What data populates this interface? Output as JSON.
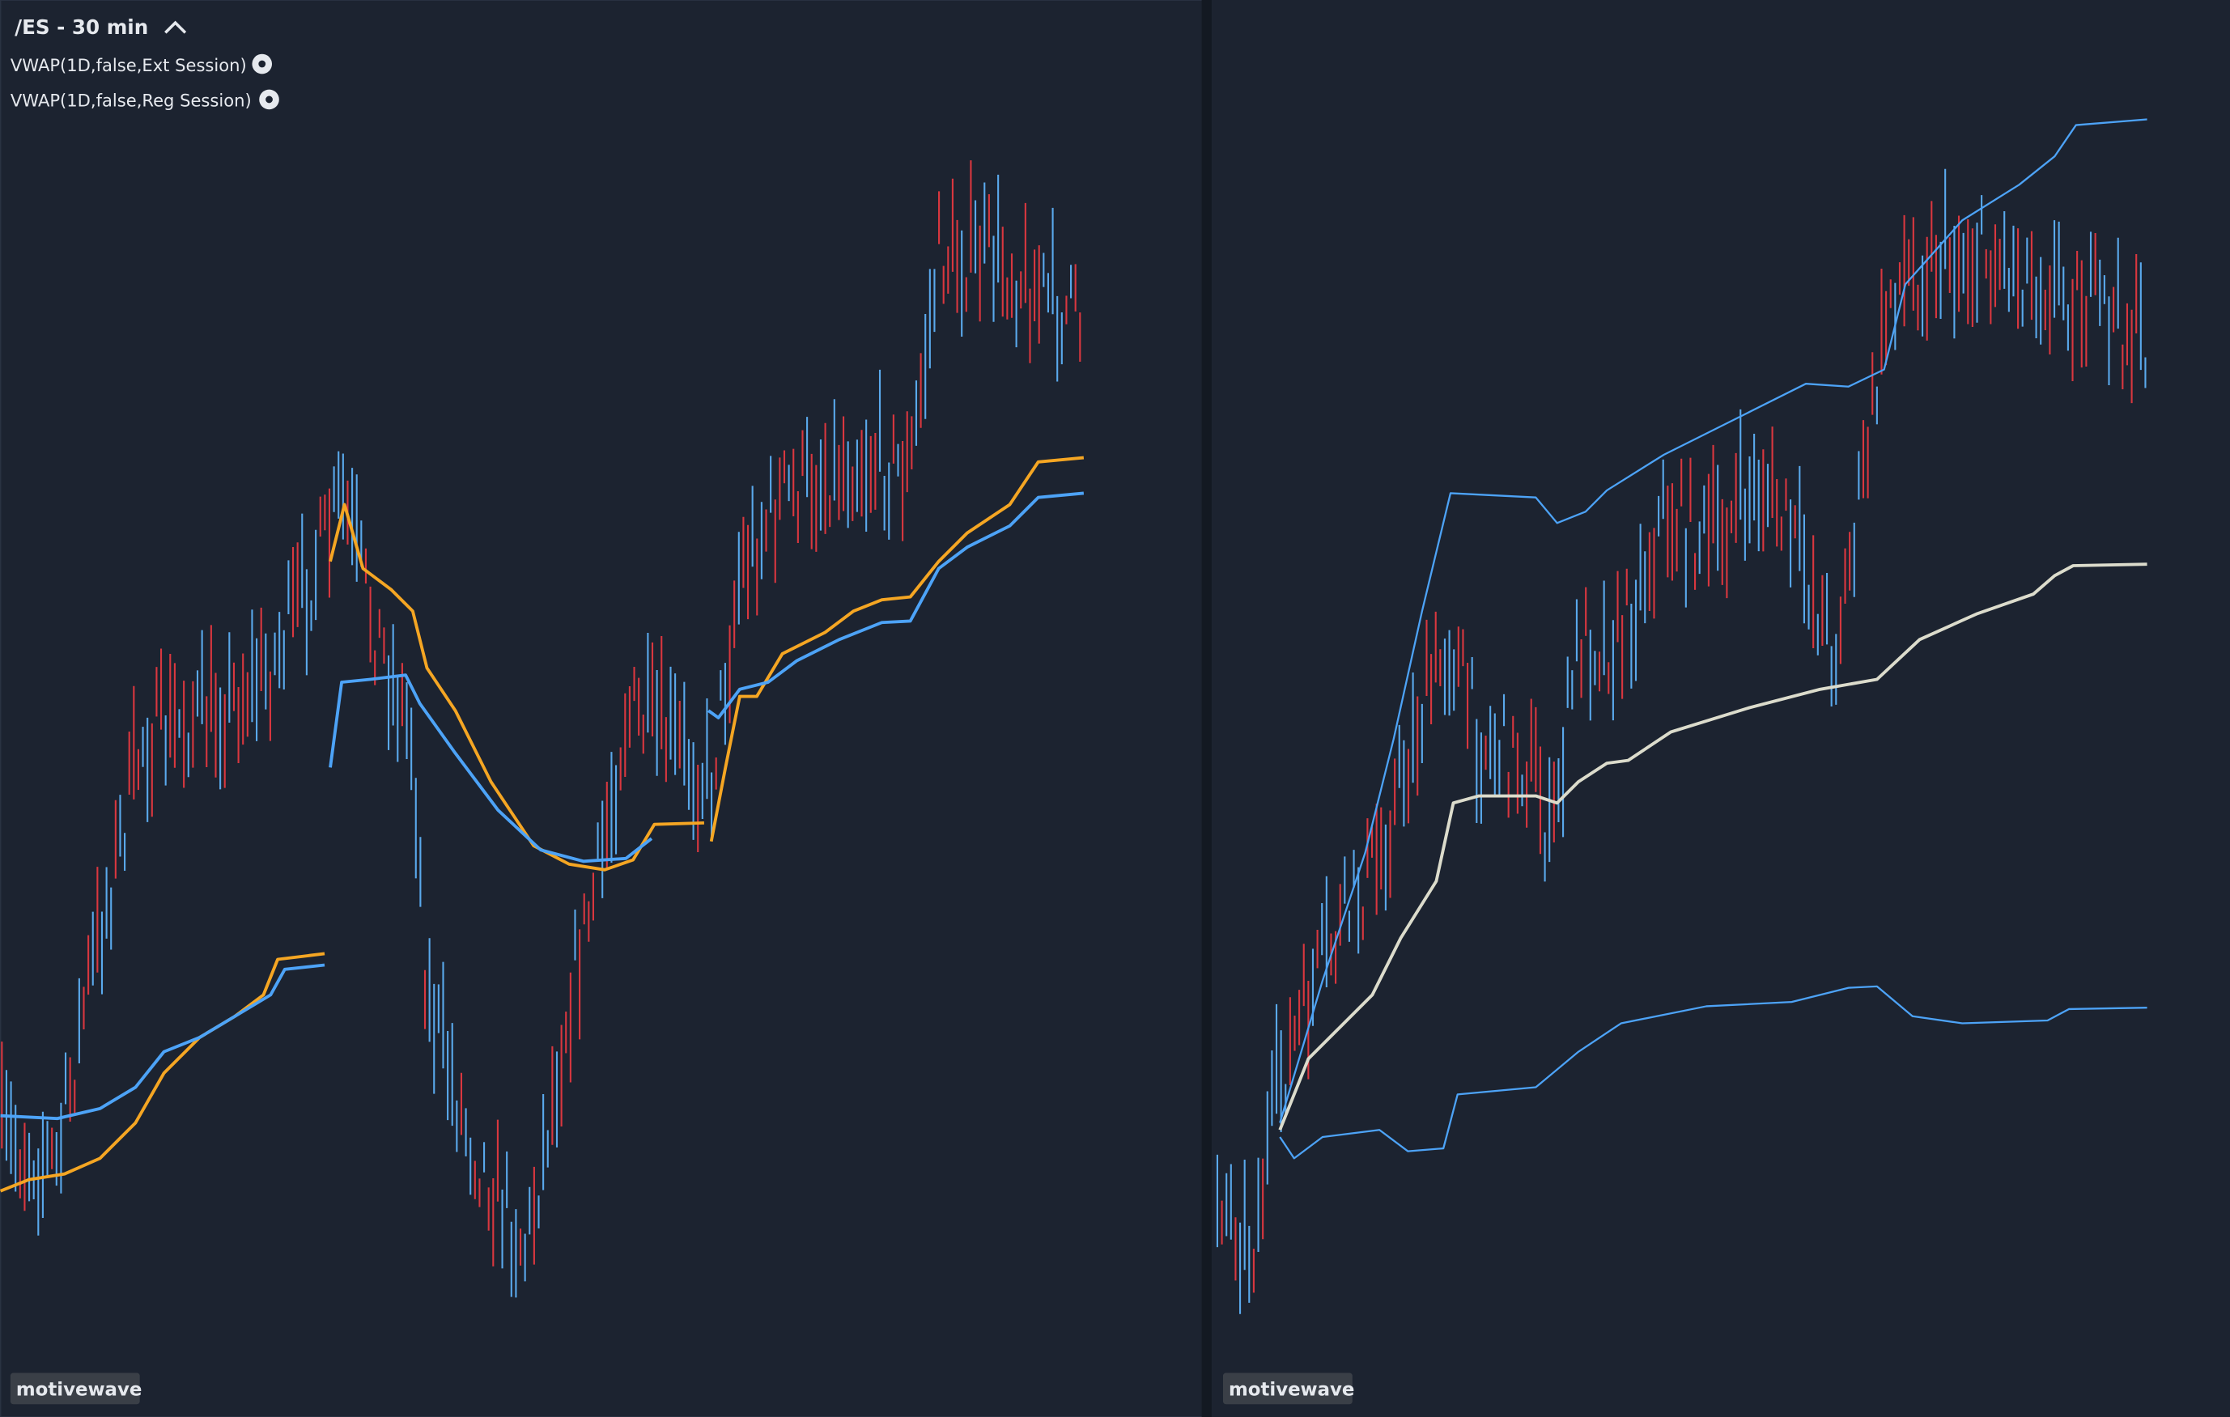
{
  "header": {
    "title": "/ES - 30 min"
  },
  "indicators": [
    {
      "label": "VWAP(1D,false,Ext Session)"
    },
    {
      "label": "VWAP(1D,false,Reg Session)"
    }
  ],
  "panes": [
    {
      "watermark": "motivewave"
    },
    {
      "watermark": "motivewave"
    }
  ]
}
